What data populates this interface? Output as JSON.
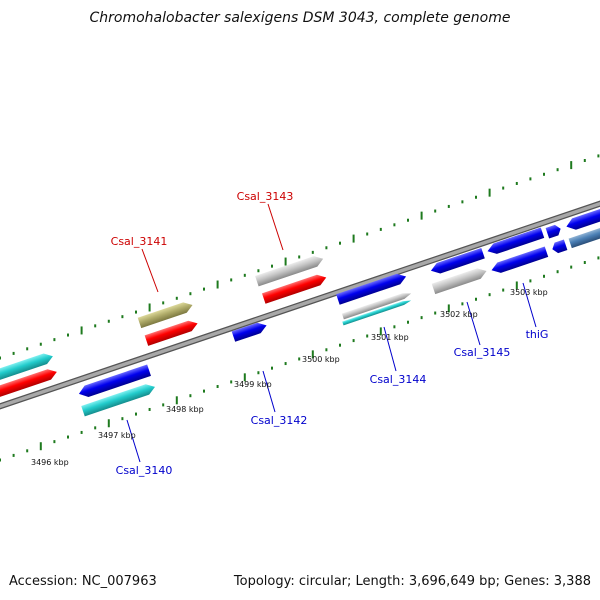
{
  "title": "Chromohalobacter salexigens DSM 3043, complete genome",
  "footer": {
    "accession": "Accession: NC_007963",
    "stats": "Topology: circular; Length: 3,696,649 bp; Genes: 3,388"
  },
  "colors": {
    "backbone": "#8a8a8a",
    "tick_marks": "#1e7a1e",
    "forward_label": "#cc0000",
    "reverse_label": "#0000cc",
    "cds_forward": "#ff0000",
    "cds_reverse": "#0000ff",
    "rna": "#b0ac6a",
    "cog": "#22cccc",
    "other": "#c4c4c4"
  },
  "tick_labels": [
    "3496 kbp",
    "3497 kbp",
    "3498 kbp",
    "3499 kbp",
    "3500 kbp",
    "3501 kbp",
    "3502 kbp",
    "3503 kbp"
  ],
  "gene_labels": [
    "Csal_3140",
    "Csal_3141",
    "Csal_3142",
    "Csal_3143",
    "Csal_3144",
    "Csal_3145",
    "thiG"
  ]
}
